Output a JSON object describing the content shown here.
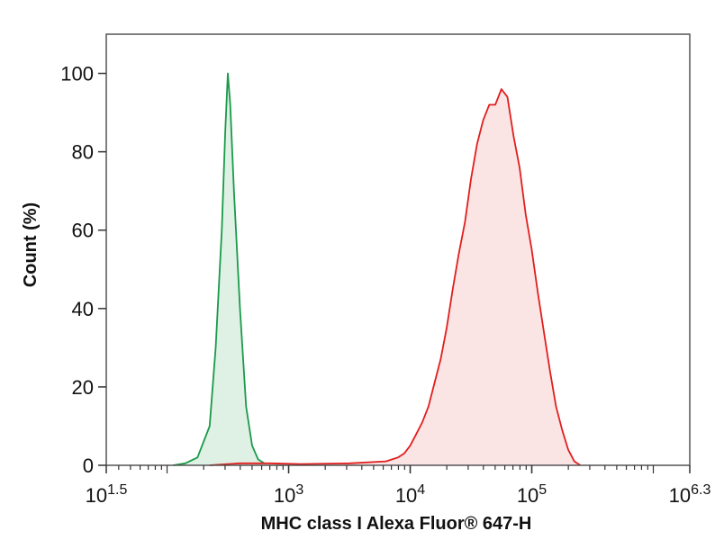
{
  "chart_data": {
    "type": "area",
    "xlabel": "MHC class I Alexa Fluor® 647-H",
    "ylabel": "Count (%)",
    "x_scale": "log10",
    "xlim": [
      31.6,
      1995262
    ],
    "ylim": [
      0,
      110
    ],
    "x_ticks": [
      {
        "value": 31.6,
        "base": "10",
        "exp": "1.5"
      },
      {
        "value": 1000,
        "base": "10",
        "exp": "3"
      },
      {
        "value": 10000,
        "base": "10",
        "exp": "4"
      },
      {
        "value": 100000,
        "base": "10",
        "exp": "5"
      },
      {
        "value": 1995262,
        "base": "10",
        "exp": "6.3"
      }
    ],
    "y_ticks": [
      0,
      20,
      40,
      60,
      80,
      100
    ],
    "grid": false,
    "legend": "none",
    "series": [
      {
        "color": "#1a9a4a",
        "fill": "#dff0e4",
        "x": [
          112,
          141,
          178,
          224,
          251,
          282,
          301,
          316,
          331,
          355,
          398,
          447,
          501,
          562,
          631,
          708,
          794,
          891
        ],
        "y": [
          0,
          0.5,
          2,
          10,
          30,
          60,
          85,
          100,
          92,
          70,
          40,
          15,
          5,
          1.5,
          0.5,
          0.2,
          0.1,
          0
        ]
      },
      {
        "color": "#e01e1e",
        "fill": "#fbe4e4",
        "x": [
          224,
          398,
          708,
          1259,
          3162,
          6310,
          7943,
          8913,
          10000,
          11220,
          12589,
          14125,
          15849,
          17783,
          19953,
          22387,
          25119,
          28184,
          31623,
          35481,
          39811,
          44668,
          50119,
          56234,
          63096,
          70795,
          79433,
          89125,
          100000,
          112202,
          125893,
          141254,
          158489,
          177828,
          199526,
          223872,
          251189
        ],
        "y": [
          0,
          0.5,
          0.5,
          0.3,
          0.5,
          1,
          2,
          3,
          5,
          8,
          11,
          15,
          21,
          27,
          35,
          45,
          54,
          62,
          73,
          82,
          88,
          92,
          92,
          96,
          94,
          84,
          76,
          64,
          55,
          44,
          34,
          24,
          15,
          9,
          4,
          1,
          0
        ]
      }
    ]
  }
}
